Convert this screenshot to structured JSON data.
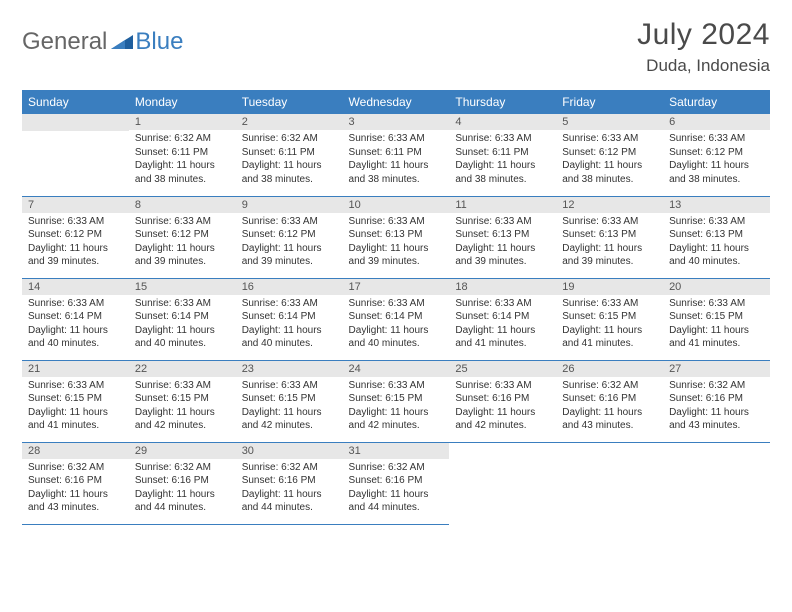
{
  "logo": {
    "general": "General",
    "blue": "Blue"
  },
  "title": "July 2024",
  "location": "Duda, Indonesia",
  "colors": {
    "header_bg": "#3a7ebf",
    "header_text": "#ffffff",
    "daynum_bg": "#e7e7e7",
    "border": "#3a7ebf",
    "logo_gray": "#666666",
    "logo_blue": "#3a7ebf"
  },
  "weekdays": [
    "Sunday",
    "Monday",
    "Tuesday",
    "Wednesday",
    "Thursday",
    "Friday",
    "Saturday"
  ],
  "weeks": [
    [
      null,
      {
        "n": "1",
        "sr": "Sunrise: 6:32 AM",
        "ss": "Sunset: 6:11 PM",
        "dl": "Daylight: 11 hours and 38 minutes."
      },
      {
        "n": "2",
        "sr": "Sunrise: 6:32 AM",
        "ss": "Sunset: 6:11 PM",
        "dl": "Daylight: 11 hours and 38 minutes."
      },
      {
        "n": "3",
        "sr": "Sunrise: 6:33 AM",
        "ss": "Sunset: 6:11 PM",
        "dl": "Daylight: 11 hours and 38 minutes."
      },
      {
        "n": "4",
        "sr": "Sunrise: 6:33 AM",
        "ss": "Sunset: 6:11 PM",
        "dl": "Daylight: 11 hours and 38 minutes."
      },
      {
        "n": "5",
        "sr": "Sunrise: 6:33 AM",
        "ss": "Sunset: 6:12 PM",
        "dl": "Daylight: 11 hours and 38 minutes."
      },
      {
        "n": "6",
        "sr": "Sunrise: 6:33 AM",
        "ss": "Sunset: 6:12 PM",
        "dl": "Daylight: 11 hours and 38 minutes."
      }
    ],
    [
      {
        "n": "7",
        "sr": "Sunrise: 6:33 AM",
        "ss": "Sunset: 6:12 PM",
        "dl": "Daylight: 11 hours and 39 minutes."
      },
      {
        "n": "8",
        "sr": "Sunrise: 6:33 AM",
        "ss": "Sunset: 6:12 PM",
        "dl": "Daylight: 11 hours and 39 minutes."
      },
      {
        "n": "9",
        "sr": "Sunrise: 6:33 AM",
        "ss": "Sunset: 6:12 PM",
        "dl": "Daylight: 11 hours and 39 minutes."
      },
      {
        "n": "10",
        "sr": "Sunrise: 6:33 AM",
        "ss": "Sunset: 6:13 PM",
        "dl": "Daylight: 11 hours and 39 minutes."
      },
      {
        "n": "11",
        "sr": "Sunrise: 6:33 AM",
        "ss": "Sunset: 6:13 PM",
        "dl": "Daylight: 11 hours and 39 minutes."
      },
      {
        "n": "12",
        "sr": "Sunrise: 6:33 AM",
        "ss": "Sunset: 6:13 PM",
        "dl": "Daylight: 11 hours and 39 minutes."
      },
      {
        "n": "13",
        "sr": "Sunrise: 6:33 AM",
        "ss": "Sunset: 6:13 PM",
        "dl": "Daylight: 11 hours and 40 minutes."
      }
    ],
    [
      {
        "n": "14",
        "sr": "Sunrise: 6:33 AM",
        "ss": "Sunset: 6:14 PM",
        "dl": "Daylight: 11 hours and 40 minutes."
      },
      {
        "n": "15",
        "sr": "Sunrise: 6:33 AM",
        "ss": "Sunset: 6:14 PM",
        "dl": "Daylight: 11 hours and 40 minutes."
      },
      {
        "n": "16",
        "sr": "Sunrise: 6:33 AM",
        "ss": "Sunset: 6:14 PM",
        "dl": "Daylight: 11 hours and 40 minutes."
      },
      {
        "n": "17",
        "sr": "Sunrise: 6:33 AM",
        "ss": "Sunset: 6:14 PM",
        "dl": "Daylight: 11 hours and 40 minutes."
      },
      {
        "n": "18",
        "sr": "Sunrise: 6:33 AM",
        "ss": "Sunset: 6:14 PM",
        "dl": "Daylight: 11 hours and 41 minutes."
      },
      {
        "n": "19",
        "sr": "Sunrise: 6:33 AM",
        "ss": "Sunset: 6:15 PM",
        "dl": "Daylight: 11 hours and 41 minutes."
      },
      {
        "n": "20",
        "sr": "Sunrise: 6:33 AM",
        "ss": "Sunset: 6:15 PM",
        "dl": "Daylight: 11 hours and 41 minutes."
      }
    ],
    [
      {
        "n": "21",
        "sr": "Sunrise: 6:33 AM",
        "ss": "Sunset: 6:15 PM",
        "dl": "Daylight: 11 hours and 41 minutes."
      },
      {
        "n": "22",
        "sr": "Sunrise: 6:33 AM",
        "ss": "Sunset: 6:15 PM",
        "dl": "Daylight: 11 hours and 42 minutes."
      },
      {
        "n": "23",
        "sr": "Sunrise: 6:33 AM",
        "ss": "Sunset: 6:15 PM",
        "dl": "Daylight: 11 hours and 42 minutes."
      },
      {
        "n": "24",
        "sr": "Sunrise: 6:33 AM",
        "ss": "Sunset: 6:15 PM",
        "dl": "Daylight: 11 hours and 42 minutes."
      },
      {
        "n": "25",
        "sr": "Sunrise: 6:33 AM",
        "ss": "Sunset: 6:16 PM",
        "dl": "Daylight: 11 hours and 42 minutes."
      },
      {
        "n": "26",
        "sr": "Sunrise: 6:32 AM",
        "ss": "Sunset: 6:16 PM",
        "dl": "Daylight: 11 hours and 43 minutes."
      },
      {
        "n": "27",
        "sr": "Sunrise: 6:32 AM",
        "ss": "Sunset: 6:16 PM",
        "dl": "Daylight: 11 hours and 43 minutes."
      }
    ],
    [
      {
        "n": "28",
        "sr": "Sunrise: 6:32 AM",
        "ss": "Sunset: 6:16 PM",
        "dl": "Daylight: 11 hours and 43 minutes."
      },
      {
        "n": "29",
        "sr": "Sunrise: 6:32 AM",
        "ss": "Sunset: 6:16 PM",
        "dl": "Daylight: 11 hours and 44 minutes."
      },
      {
        "n": "30",
        "sr": "Sunrise: 6:32 AM",
        "ss": "Sunset: 6:16 PM",
        "dl": "Daylight: 11 hours and 44 minutes."
      },
      {
        "n": "31",
        "sr": "Sunrise: 6:32 AM",
        "ss": "Sunset: 6:16 PM",
        "dl": "Daylight: 11 hours and 44 minutes."
      },
      null,
      null,
      null
    ]
  ]
}
